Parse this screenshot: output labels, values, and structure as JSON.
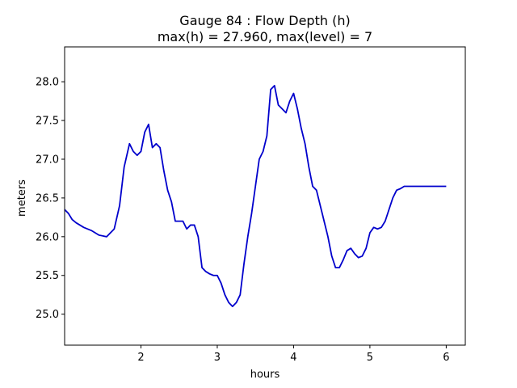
{
  "chart_data": {
    "type": "line",
    "title_line1": "Gauge 84 : Flow Depth (h)",
    "title_line2": "max(h) =  27.960,    max(level) = 7",
    "xlabel": "hours",
    "ylabel": "meters",
    "xlim": [
      1.0,
      6.25
    ],
    "ylim": [
      24.6,
      28.45
    ],
    "xticks": [
      2,
      3,
      4,
      5,
      6
    ],
    "xtick_labels": [
      "2",
      "3",
      "4",
      "5",
      "6"
    ],
    "yticks": [
      25.0,
      25.5,
      26.0,
      26.5,
      27.0,
      27.5,
      28.0
    ],
    "ytick_labels": [
      "25.0",
      "25.5",
      "26.0",
      "26.5",
      "27.0",
      "27.5",
      "28.0"
    ],
    "grid": false,
    "series": [
      {
        "color": "#0000cc",
        "x": [
          1.0,
          1.05,
          1.1,
          1.15,
          1.25,
          1.35,
          1.45,
          1.55,
          1.65,
          1.72,
          1.78,
          1.85,
          1.9,
          1.95,
          2.0,
          2.05,
          2.1,
          2.15,
          2.2,
          2.25,
          2.3,
          2.35,
          2.4,
          2.45,
          2.5,
          2.55,
          2.6,
          2.65,
          2.7,
          2.75,
          2.8,
          2.85,
          2.9,
          2.95,
          3.0,
          3.05,
          3.1,
          3.15,
          3.2,
          3.25,
          3.3,
          3.35,
          3.4,
          3.45,
          3.5,
          3.55,
          3.6,
          3.65,
          3.7,
          3.75,
          3.8,
          3.85,
          3.9,
          3.95,
          4.0,
          4.05,
          4.1,
          4.15,
          4.2,
          4.25,
          4.3,
          4.35,
          4.4,
          4.45,
          4.5,
          4.55,
          4.6,
          4.65,
          4.7,
          4.75,
          4.8,
          4.85,
          4.9,
          4.95,
          5.0,
          5.05,
          5.1,
          5.15,
          5.2,
          5.25,
          5.3,
          5.35,
          5.4,
          5.45,
          5.5,
          5.55,
          5.6,
          5.65,
          5.7,
          5.75,
          5.8,
          5.85,
          5.9,
          5.95,
          6.0
        ],
        "y": [
          26.35,
          26.3,
          26.22,
          26.18,
          26.12,
          26.08,
          26.02,
          26.0,
          26.1,
          26.4,
          26.9,
          27.2,
          27.1,
          27.05,
          27.1,
          27.35,
          27.45,
          27.15,
          27.2,
          27.15,
          26.85,
          26.6,
          26.45,
          26.2,
          26.2,
          26.2,
          26.1,
          26.15,
          26.15,
          26.0,
          25.6,
          25.55,
          25.52,
          25.5,
          25.5,
          25.4,
          25.25,
          25.15,
          25.1,
          25.15,
          25.25,
          25.65,
          26.0,
          26.3,
          26.65,
          27.0,
          27.1,
          27.3,
          27.9,
          27.95,
          27.7,
          27.65,
          27.6,
          27.75,
          27.85,
          27.65,
          27.4,
          27.2,
          26.9,
          26.65,
          26.6,
          26.4,
          26.2,
          26.0,
          25.75,
          25.6,
          25.6,
          25.7,
          25.82,
          25.85,
          25.78,
          25.73,
          25.75,
          25.85,
          26.05,
          26.12,
          26.1,
          26.12,
          26.2,
          26.35,
          26.5,
          26.6,
          26.62,
          26.65,
          26.65,
          26.65,
          26.65,
          26.65,
          26.65,
          26.65,
          26.65,
          26.65,
          26.65,
          26.65,
          26.65
        ]
      }
    ]
  }
}
